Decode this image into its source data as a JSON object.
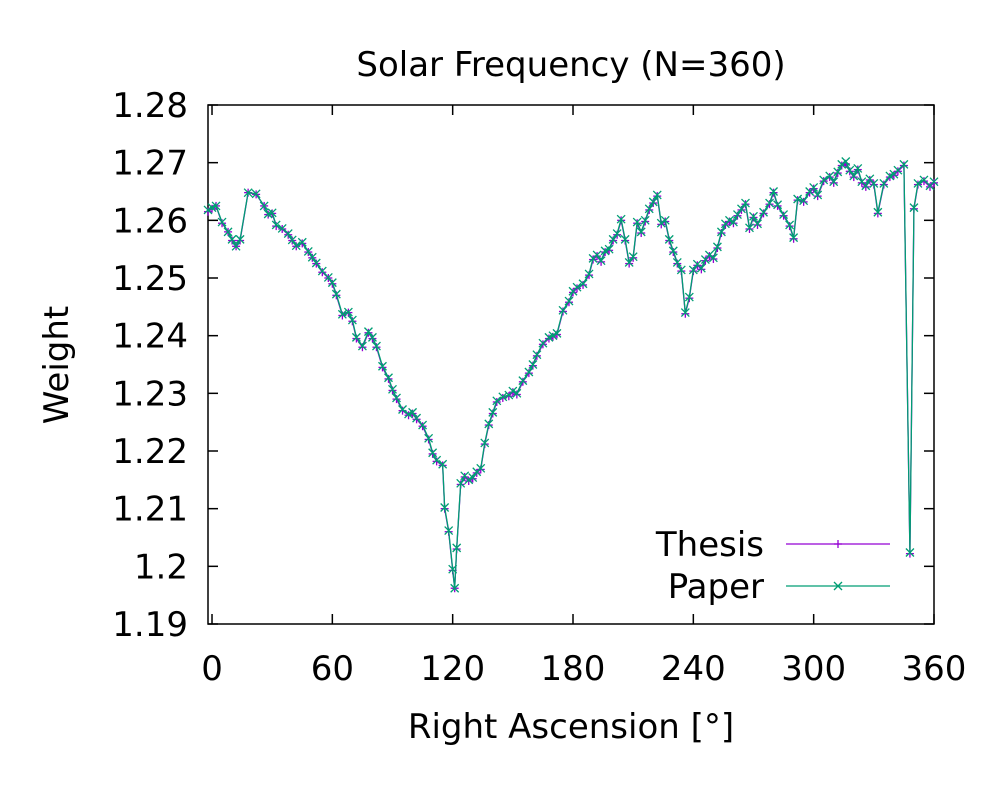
{
  "chart_data": {
    "type": "line",
    "title": "Solar Frequency (N=360)",
    "xlabel": "Right Ascension [°]",
    "ylabel": "Weight",
    "xlim": [
      -2,
      360
    ],
    "ylim": [
      1.19,
      1.28
    ],
    "xticks": [
      0,
      60,
      120,
      180,
      240,
      300,
      360
    ],
    "yticks": [
      1.19,
      1.2,
      1.21,
      1.22,
      1.23,
      1.24,
      1.25,
      1.26,
      1.27,
      1.28
    ],
    "xtick_labels": [
      "0",
      "60",
      "120",
      "180",
      "240",
      "300",
      "360"
    ],
    "ytick_labels": [
      "1.19",
      "1.2",
      "1.21",
      "1.22",
      "1.23",
      "1.24",
      "1.25",
      "1.26",
      "1.27",
      "1.28"
    ],
    "grid": false,
    "legend_position": "bottom-right",
    "x": [
      -2,
      0,
      2,
      5,
      8,
      10,
      12,
      14,
      18,
      22,
      26,
      28,
      30,
      32,
      35,
      38,
      40,
      42,
      45,
      48,
      50,
      52,
      55,
      58,
      60,
      62,
      65,
      68,
      70,
      72,
      75,
      78,
      80,
      82,
      85,
      88,
      90,
      92,
      95,
      98,
      100,
      102,
      105,
      108,
      110,
      112,
      115,
      116,
      118,
      120,
      121,
      122,
      124,
      126,
      128,
      130,
      132,
      134,
      136,
      138,
      140,
      142,
      145,
      148,
      150,
      152,
      155,
      158,
      160,
      162,
      165,
      168,
      170,
      172,
      175,
      178,
      180,
      182,
      185,
      188,
      190,
      192,
      194,
      196,
      198,
      200,
      202,
      204,
      206,
      208,
      210,
      212,
      214,
      216,
      218,
      220,
      222,
      224,
      226,
      228,
      230,
      232,
      234,
      236,
      238,
      240,
      242,
      244,
      246,
      248,
      250,
      252,
      254,
      256,
      258,
      260,
      262,
      264,
      266,
      268,
      270,
      272,
      275,
      278,
      280,
      282,
      285,
      288,
      290,
      292,
      295,
      298,
      300,
      302,
      305,
      308,
      310,
      312,
      314,
      316,
      318,
      320,
      322,
      324,
      326,
      328,
      330,
      332,
      335,
      338,
      340,
      342,
      345,
      348,
      350,
      352,
      355,
      358,
      360
    ],
    "series": [
      {
        "name": "Thesis",
        "color": "#9400d3",
        "marker": "+",
        "values": [
          1.2615,
          1.262,
          1.2625,
          1.2595,
          1.258,
          1.2565,
          1.2555,
          1.2565,
          1.2648,
          1.2645,
          1.2625,
          1.261,
          1.2612,
          1.259,
          1.2585,
          1.2575,
          1.2565,
          1.2555,
          1.256,
          1.2545,
          1.2535,
          1.2525,
          1.251,
          1.25,
          1.249,
          1.247,
          1.2435,
          1.244,
          1.2425,
          1.2395,
          1.238,
          1.2405,
          1.2395,
          1.238,
          1.2345,
          1.2325,
          1.2305,
          1.229,
          1.227,
          1.2262,
          1.2265,
          1.2255,
          1.2243,
          1.222,
          1.2195,
          1.2182,
          1.2175,
          1.21,
          1.206,
          1.1993,
          1.1962,
          1.203,
          1.2142,
          1.2155,
          1.2148,
          1.2152,
          1.2162,
          1.2168,
          1.2212,
          1.2245,
          1.2265,
          1.2285,
          1.2292,
          1.2295,
          1.2302,
          1.2298,
          1.232,
          1.2335,
          1.2348,
          1.2365,
          1.2385,
          1.2395,
          1.2398,
          1.2402,
          1.2442,
          1.2458,
          1.2475,
          1.2482,
          1.2488,
          1.2505,
          1.2532,
          1.2538,
          1.2528,
          1.2545,
          1.2548,
          1.2565,
          1.2575,
          1.26,
          1.2565,
          1.2525,
          1.2535,
          1.2595,
          1.2578,
          1.2598,
          1.2618,
          1.263,
          1.2642,
          1.2593,
          1.2598,
          1.2565,
          1.2545,
          1.2525,
          1.2512,
          1.2438,
          1.2465,
          1.2512,
          1.2522,
          1.2515,
          1.253,
          1.2538,
          1.2533,
          1.2552,
          1.2578,
          1.2592,
          1.2598,
          1.2595,
          1.2608,
          1.2618,
          1.2628,
          1.2585,
          1.2605,
          1.2592,
          1.2612,
          1.2628,
          1.2648,
          1.2625,
          1.2608,
          1.259,
          1.2568,
          1.2635,
          1.2632,
          1.2648,
          1.2655,
          1.2642,
          1.2668,
          1.2675,
          1.2665,
          1.2682,
          1.2695,
          1.2698,
          1.2685,
          1.2675,
          1.2688,
          1.2665,
          1.2658,
          1.267,
          1.2662,
          1.2612,
          1.2662,
          1.2675,
          1.2678,
          1.2685,
          1.2695,
          1.2022,
          1.262,
          1.2662,
          1.2668,
          1.2658,
          1.2665
        ]
      },
      {
        "name": "Paper",
        "color": "#009e73",
        "marker": "x",
        "values": [
          1.2618,
          1.2622,
          1.2625,
          1.2597,
          1.258,
          1.2567,
          1.2555,
          1.2567,
          1.2648,
          1.2646,
          1.2625,
          1.2611,
          1.2613,
          1.2592,
          1.2586,
          1.2577,
          1.2566,
          1.2556,
          1.2562,
          1.2546,
          1.2536,
          1.2526,
          1.2512,
          1.2501,
          1.2492,
          1.2472,
          1.2437,
          1.2441,
          1.2427,
          1.2397,
          1.2382,
          1.2407,
          1.2397,
          1.2382,
          1.2347,
          1.2327,
          1.2307,
          1.2292,
          1.2272,
          1.2264,
          1.2267,
          1.2257,
          1.2245,
          1.2222,
          1.2197,
          1.2184,
          1.2177,
          1.2102,
          1.2062,
          1.1995,
          1.1962,
          1.2032,
          1.2144,
          1.2157,
          1.215,
          1.2154,
          1.2164,
          1.217,
          1.2214,
          1.2247,
          1.2267,
          1.2287,
          1.2294,
          1.2297,
          1.2304,
          1.23,
          1.2322,
          1.2337,
          1.235,
          1.2367,
          1.2387,
          1.2397,
          1.24,
          1.2404,
          1.2444,
          1.246,
          1.2477,
          1.2484,
          1.249,
          1.2507,
          1.2534,
          1.254,
          1.253,
          1.2547,
          1.255,
          1.2567,
          1.2577,
          1.2602,
          1.2567,
          1.2527,
          1.2537,
          1.2597,
          1.258,
          1.26,
          1.262,
          1.2632,
          1.2644,
          1.2595,
          1.26,
          1.2567,
          1.2547,
          1.2527,
          1.2514,
          1.244,
          1.2467,
          1.2514,
          1.2524,
          1.2517,
          1.2532,
          1.254,
          1.2535,
          1.2554,
          1.258,
          1.2594,
          1.26,
          1.2597,
          1.261,
          1.262,
          1.263,
          1.2587,
          1.2607,
          1.2594,
          1.2614,
          1.263,
          1.265,
          1.2627,
          1.261,
          1.2592,
          1.257,
          1.2637,
          1.2634,
          1.265,
          1.2657,
          1.2644,
          1.267,
          1.2677,
          1.2667,
          1.2684,
          1.2697,
          1.2702,
          1.2687,
          1.2677,
          1.269,
          1.2667,
          1.266,
          1.2672,
          1.2664,
          1.2614,
          1.2664,
          1.2677,
          1.268,
          1.2687,
          1.2697,
          1.2024,
          1.2622,
          1.2664,
          1.267,
          1.266,
          1.2667
        ]
      }
    ]
  }
}
